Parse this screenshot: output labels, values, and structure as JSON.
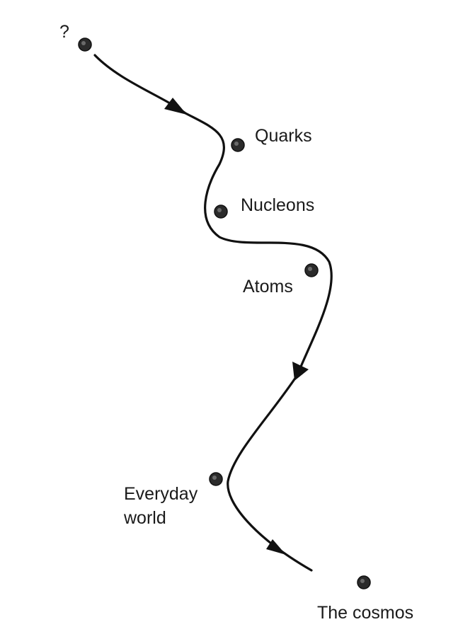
{
  "nodes": [
    {
      "id": "unknown",
      "label": "?"
    },
    {
      "id": "quarks",
      "label": "Quarks"
    },
    {
      "id": "nucleons",
      "label": "Nucleons"
    },
    {
      "id": "atoms",
      "label": "Atoms"
    },
    {
      "id": "everyday-world",
      "label_line1": "Everyday",
      "label_line2": "world"
    },
    {
      "id": "cosmos",
      "label": "The cosmos"
    }
  ],
  "colors": {
    "line": "#111111",
    "node": "#2b2b2b",
    "text": "#1a1a1a"
  }
}
